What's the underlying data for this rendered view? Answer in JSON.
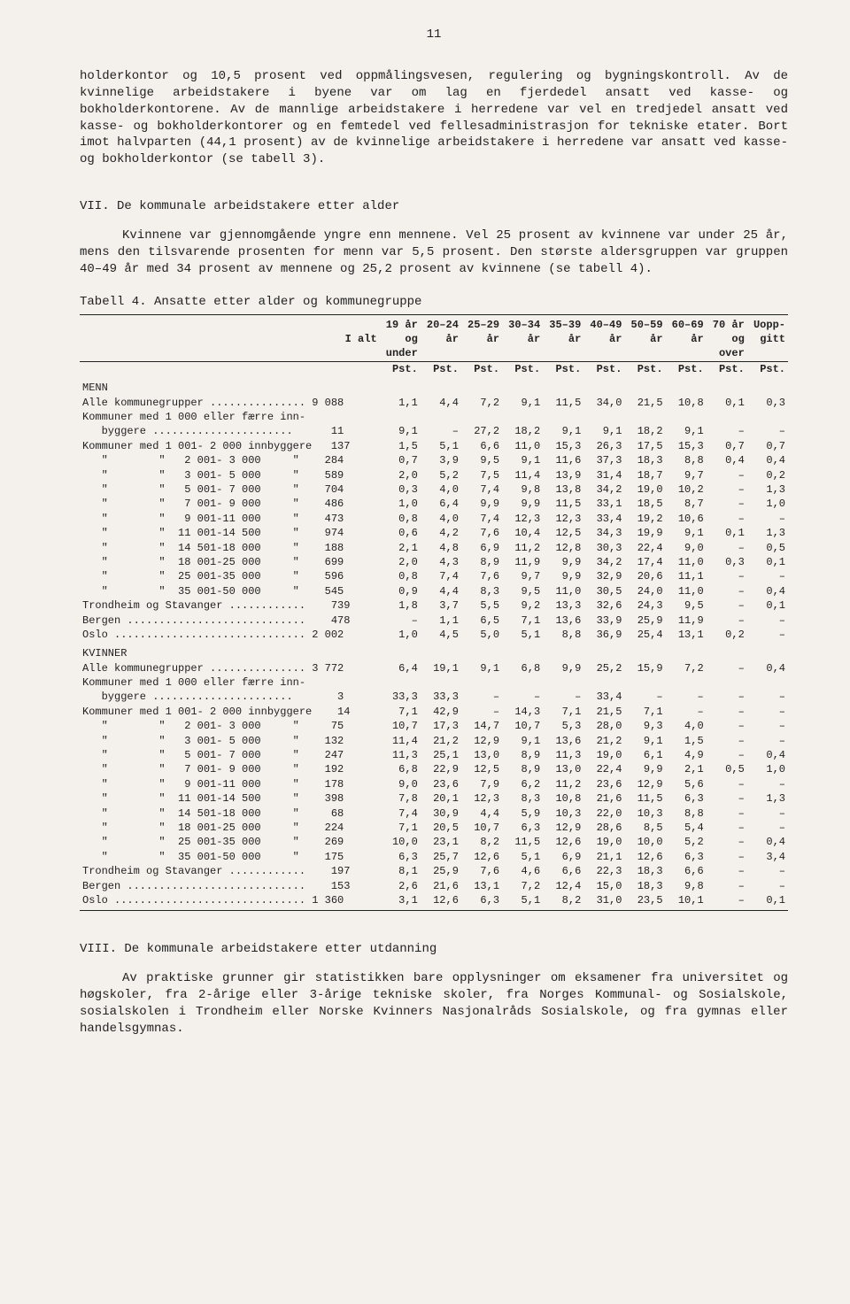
{
  "page_number": "11",
  "paragraphs": {
    "p1": "holderkontor og 10,5 prosent ved oppmålingsvesen, regulering og bygningskontroll. Av de kvinnelige arbeidstakere i byene var om lag en fjerdedel ansatt ved kasse- og bokholderkontorene. Av de mannlige arbeidstakere i herredene var vel en tredjedel ansatt ved kasse- og bokholderkontorer og en femtedel ved fellesadministrasjon for tekniske etater. Bort imot halvparten (44,1 prosent) av de kvinnelige arbeidstakere i herredene var ansatt ved kasse- og bokholderkontor (se tabell 3).",
    "h_vii": "VII.  De kommunale arbeidstakere etter alder",
    "p2": "Kvinnene var gjennomgående yngre enn mennene. Vel 25 prosent av kvinnene var under 25 år, mens den tilsvarende prosenten for menn var 5,5 prosent. Den største aldersgruppen var gruppen 40–49 år med 34 prosent av mennene og 25,2 prosent av kvinnene (se tabell 4).",
    "table_caption": "Tabell 4.  Ansatte etter alder og kommunegruppe",
    "h_viii": "VIII.  De kommunale arbeidstakere etter utdanning",
    "p3": "Av praktiske grunner gir statistikken bare opplysninger om eksamener fra universitet og høgskoler, fra 2-årige eller 3-årige tekniske skoler, fra Norges Kommunal- og Sosialskole, sosialskolen i Trondheim eller Norske Kvinners Nasjonalråds Sosialskole, og fra gymnas eller handelsgymnas."
  },
  "table": {
    "head": {
      "c0": "",
      "c1": "I alt",
      "c2a": "19 år",
      "c2b": "og",
      "c2c": "under",
      "c3a": "20–24",
      "c3b": "år",
      "c4a": "25–29",
      "c4b": "år",
      "c5a": "30–34",
      "c5b": "år",
      "c6a": "35–39",
      "c6b": "år",
      "c7a": "40–49",
      "c7b": "år",
      "c8a": "50–59",
      "c8b": "år",
      "c9a": "60–69",
      "c9b": "år",
      "c10a": "70 år",
      "c10b": "og",
      "c10c": "over",
      "c11a": "Uopp-",
      "c11b": "gitt",
      "unit": "Pst."
    },
    "groups": {
      "menn": "MENN",
      "kvinner": "KVINNER"
    },
    "rows_menn": [
      {
        "label": "Alle kommunegrupper ............... 9 088",
        "v": [
          "1,1",
          "4,4",
          "7,2",
          "9,1",
          "11,5",
          "34,0",
          "21,5",
          "10,8",
          "0,1",
          "0,3"
        ]
      },
      {
        "label": "Kommuner med 1 000 eller færre inn-",
        "v": [
          "",
          "",
          "",
          "",
          "",
          "",
          "",
          "",
          "",
          ""
        ]
      },
      {
        "label": "   byggere ......................      11",
        "v": [
          "9,1",
          "–",
          "27,2",
          "18,2",
          "9,1",
          "9,1",
          "18,2",
          "9,1",
          "–",
          "–"
        ]
      },
      {
        "label": "Kommuner med 1 001- 2 000 innbyggere   137",
        "v": [
          "1,5",
          "5,1",
          "6,6",
          "11,0",
          "15,3",
          "26,3",
          "17,5",
          "15,3",
          "0,7",
          "0,7"
        ]
      },
      {
        "label": "   \"        \"   2 001- 3 000     \"    284",
        "v": [
          "0,7",
          "3,9",
          "9,5",
          "9,1",
          "11,6",
          "37,3",
          "18,3",
          "8,8",
          "0,4",
          "0,4"
        ]
      },
      {
        "label": "   \"        \"   3 001- 5 000     \"    589",
        "v": [
          "2,0",
          "5,2",
          "7,5",
          "11,4",
          "13,9",
          "31,4",
          "18,7",
          "9,7",
          "–",
          "0,2"
        ]
      },
      {
        "label": "   \"        \"   5 001- 7 000     \"    704",
        "v": [
          "0,3",
          "4,0",
          "7,4",
          "9,8",
          "13,8",
          "34,2",
          "19,0",
          "10,2",
          "–",
          "1,3"
        ]
      },
      {
        "label": "   \"        \"   7 001- 9 000     \"    486",
        "v": [
          "1,0",
          "6,4",
          "9,9",
          "9,9",
          "11,5",
          "33,1",
          "18,5",
          "8,7",
          "–",
          "1,0"
        ]
      },
      {
        "label": "   \"        \"   9 001-11 000     \"    473",
        "v": [
          "0,8",
          "4,0",
          "7,4",
          "12,3",
          "12,3",
          "33,4",
          "19,2",
          "10,6",
          "–",
          "–"
        ]
      },
      {
        "label": "   \"        \"  11 001-14 500     \"    974",
        "v": [
          "0,6",
          "4,2",
          "7,6",
          "10,4",
          "12,5",
          "34,3",
          "19,9",
          "9,1",
          "0,1",
          "1,3"
        ]
      },
      {
        "label": "   \"        \"  14 501-18 000     \"    188",
        "v": [
          "2,1",
          "4,8",
          "6,9",
          "11,2",
          "12,8",
          "30,3",
          "22,4",
          "9,0",
          "–",
          "0,5"
        ]
      },
      {
        "label": "   \"        \"  18 001-25 000     \"    699",
        "v": [
          "2,0",
          "4,3",
          "8,9",
          "11,9",
          "9,9",
          "34,2",
          "17,4",
          "11,0",
          "0,3",
          "0,1"
        ]
      },
      {
        "label": "   \"        \"  25 001-35 000     \"    596",
        "v": [
          "0,8",
          "7,4",
          "7,6",
          "9,7",
          "9,9",
          "32,9",
          "20,6",
          "11,1",
          "–",
          "–"
        ]
      },
      {
        "label": "   \"        \"  35 001-50 000     \"    545",
        "v": [
          "0,9",
          "4,4",
          "8,3",
          "9,5",
          "11,0",
          "30,5",
          "24,0",
          "11,0",
          "–",
          "0,4"
        ]
      },
      {
        "label": "Trondheim og Stavanger ............    739",
        "v": [
          "1,8",
          "3,7",
          "5,5",
          "9,2",
          "13,3",
          "32,6",
          "24,3",
          "9,5",
          "–",
          "0,1"
        ]
      },
      {
        "label": "Bergen ............................    478",
        "v": [
          "–",
          "1,1",
          "6,5",
          "7,1",
          "13,6",
          "33,9",
          "25,9",
          "11,9",
          "–",
          "–"
        ]
      },
      {
        "label": "Oslo .............................. 2 002",
        "v": [
          "1,0",
          "4,5",
          "5,0",
          "5,1",
          "8,8",
          "36,9",
          "25,4",
          "13,1",
          "0,2",
          "–"
        ]
      }
    ],
    "rows_kvinner": [
      {
        "label": "Alle kommunegrupper ............... 3 772",
        "v": [
          "6,4",
          "19,1",
          "9,1",
          "6,8",
          "9,9",
          "25,2",
          "15,9",
          "7,2",
          "–",
          "0,4"
        ]
      },
      {
        "label": "Kommuner med 1 000 eller færre inn-",
        "v": [
          "",
          "",
          "",
          "",
          "",
          "",
          "",
          "",
          "",
          ""
        ]
      },
      {
        "label": "   byggere ......................       3",
        "v": [
          "33,3",
          "33,3",
          "–",
          "–",
          "–",
          "33,4",
          "–",
          "–",
          "–",
          "–"
        ]
      },
      {
        "label": "Kommuner med 1 001- 2 000 innbyggere    14",
        "v": [
          "7,1",
          "42,9",
          "–",
          "14,3",
          "7,1",
          "21,5",
          "7,1",
          "–",
          "–",
          "–"
        ]
      },
      {
        "label": "   \"        \"   2 001- 3 000     \"     75",
        "v": [
          "10,7",
          "17,3",
          "14,7",
          "10,7",
          "5,3",
          "28,0",
          "9,3",
          "4,0",
          "–",
          "–"
        ]
      },
      {
        "label": "   \"        \"   3 001- 5 000     \"    132",
        "v": [
          "11,4",
          "21,2",
          "12,9",
          "9,1",
          "13,6",
          "21,2",
          "9,1",
          "1,5",
          "–",
          "–"
        ]
      },
      {
        "label": "   \"        \"   5 001- 7 000     \"    247",
        "v": [
          "11,3",
          "25,1",
          "13,0",
          "8,9",
          "11,3",
          "19,0",
          "6,1",
          "4,9",
          "–",
          "0,4"
        ]
      },
      {
        "label": "   \"        \"   7 001- 9 000     \"    192",
        "v": [
          "6,8",
          "22,9",
          "12,5",
          "8,9",
          "13,0",
          "22,4",
          "9,9",
          "2,1",
          "0,5",
          "1,0"
        ]
      },
      {
        "label": "   \"        \"   9 001-11 000     \"    178",
        "v": [
          "9,0",
          "23,6",
          "7,9",
          "6,2",
          "11,2",
          "23,6",
          "12,9",
          "5,6",
          "–",
          "–"
        ]
      },
      {
        "label": "   \"        \"  11 001-14 500     \"    398",
        "v": [
          "7,8",
          "20,1",
          "12,3",
          "8,3",
          "10,8",
          "21,6",
          "11,5",
          "6,3",
          "–",
          "1,3"
        ]
      },
      {
        "label": "   \"        \"  14 501-18 000     \"     68",
        "v": [
          "7,4",
          "30,9",
          "4,4",
          "5,9",
          "10,3",
          "22,0",
          "10,3",
          "8,8",
          "–",
          "–"
        ]
      },
      {
        "label": "   \"        \"  18 001-25 000     \"    224",
        "v": [
          "7,1",
          "20,5",
          "10,7",
          "6,3",
          "12,9",
          "28,6",
          "8,5",
          "5,4",
          "–",
          "–"
        ]
      },
      {
        "label": "   \"        \"  25 001-35 000     \"    269",
        "v": [
          "10,0",
          "23,1",
          "8,2",
          "11,5",
          "12,6",
          "19,0",
          "10,0",
          "5,2",
          "–",
          "0,4"
        ]
      },
      {
        "label": "   \"        \"  35 001-50 000     \"    175",
        "v": [
          "6,3",
          "25,7",
          "12,6",
          "5,1",
          "6,9",
          "21,1",
          "12,6",
          "6,3",
          "–",
          "3,4"
        ]
      },
      {
        "label": "Trondheim og Stavanger ............    197",
        "v": [
          "8,1",
          "25,9",
          "7,6",
          "4,6",
          "6,6",
          "22,3",
          "18,3",
          "6,6",
          "–",
          "–"
        ]
      },
      {
        "label": "Bergen ............................    153",
        "v": [
          "2,6",
          "21,6",
          "13,1",
          "7,2",
          "12,4",
          "15,0",
          "18,3",
          "9,8",
          "–",
          "–"
        ]
      },
      {
        "label": "Oslo .............................. 1 360",
        "v": [
          "3,1",
          "12,6",
          "6,3",
          "5,1",
          "8,2",
          "31,0",
          "23,5",
          "10,1",
          "–",
          "0,1"
        ]
      }
    ]
  }
}
